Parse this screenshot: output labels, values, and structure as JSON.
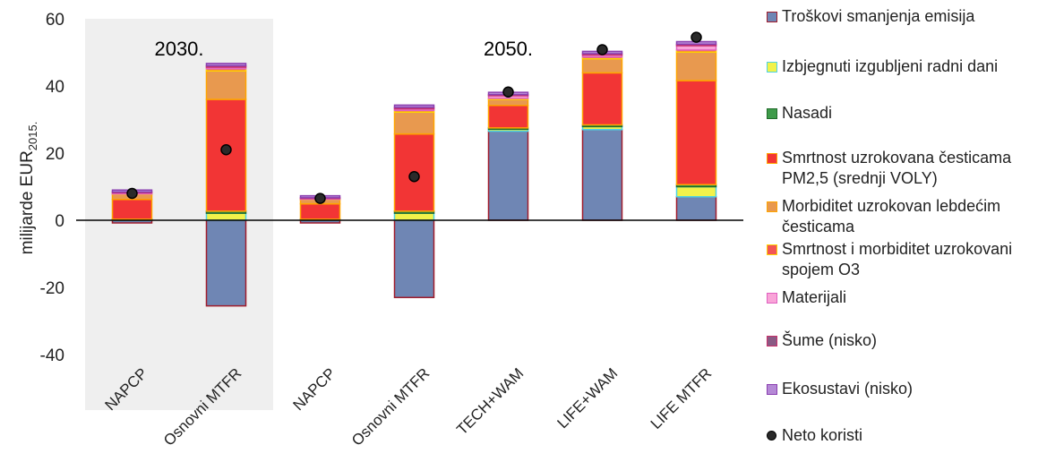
{
  "chart_data": {
    "type": "bar",
    "stacked": true,
    "ylabel_main": "milijarde EUR",
    "ylabel_sub": "2015.",
    "ylim": [
      -40,
      60
    ],
    "yticks": [
      -40,
      -20,
      0,
      20,
      40,
      60
    ],
    "categories": [
      "NAPCP",
      "Osnovni MTFR",
      "NAPCP",
      "Osnovni MTFR",
      "TECH+WAM",
      "LIFE+WAM",
      "LIFE MTFR"
    ],
    "group_labels": [
      {
        "text": "2030.",
        "category_index": 0.5
      },
      {
        "text": "2050.",
        "category_index": 4
      }
    ],
    "shaded_group": {
      "from_index": 0,
      "to_index": 1
    },
    "series": [
      {
        "name": "Troškovi smanjenja emisija",
        "fill": "#6f86b4",
        "stroke": "#a01c2c",
        "values": [
          -0.8,
          -25.5,
          -0.8,
          -23,
          26.5,
          27,
          7
        ]
      },
      {
        "name": "Izbjegnuti izgubljeni radni dani",
        "fill": "#f2f24a",
        "stroke": "#4fd3e0",
        "values": [
          0.2,
          2.1,
          0.2,
          2.1,
          0.6,
          0.9,
          3
        ]
      },
      {
        "name": "Nasadi",
        "fill": "#3e9b4a",
        "stroke": "#206b2a",
        "values": [
          0.1,
          0.6,
          0.1,
          0.6,
          0.4,
          0.5,
          0.6
        ]
      },
      {
        "name": "Smrtnost uzrokovana česticama PM2,5 (srednji VOLY)",
        "fill": "#f23535",
        "stroke": "#ffa500",
        "values": [
          5.9,
          33.3,
          4.6,
          23,
          6.7,
          15.5,
          31
        ]
      },
      {
        "name": "Morbiditet uzrokovan lebdećim česticama",
        "fill": "#e8994f",
        "stroke": "#ffa500",
        "values": [
          1.5,
          8.5,
          1.2,
          6.5,
          1.8,
          4.2,
          8.5
        ]
      },
      {
        "name": "Smrtnost i morbiditet uzrokovani spojem O3",
        "fill": "#f25555",
        "stroke": "#ffd400",
        "values": [
          0.1,
          0.6,
          0.1,
          0.5,
          0.3,
          0.5,
          0.6
        ]
      },
      {
        "name": "Materijali",
        "fill": "#f9a4d8",
        "stroke": "#e060c0",
        "values": [
          0.4,
          0.5,
          0.3,
          0.5,
          0.8,
          0.6,
          1.3
        ]
      },
      {
        "name": "Šume (nisko)",
        "fill": "#8a5a84",
        "stroke": "#c8306a",
        "values": [
          0.2,
          0.4,
          0.2,
          0.4,
          0.3,
          0.4,
          0.4
        ]
      },
      {
        "name": "Ekosustavi (nisko)",
        "fill": "#b589d6",
        "stroke": "#8a3fb0",
        "values": [
          0.6,
          0.7,
          0.6,
          0.7,
          0.7,
          0.7,
          0.8
        ]
      }
    ],
    "net_benefit": {
      "name": "Neto koristi",
      "values": [
        8,
        21,
        6.5,
        13,
        38.2,
        50.8,
        54.5
      ]
    },
    "legend_position": "right",
    "grid": false
  },
  "colors": {
    "axis": "#000000",
    "tick_text": "#222222",
    "shade": "#efefef",
    "dot_fill": "#2a2a2a"
  }
}
